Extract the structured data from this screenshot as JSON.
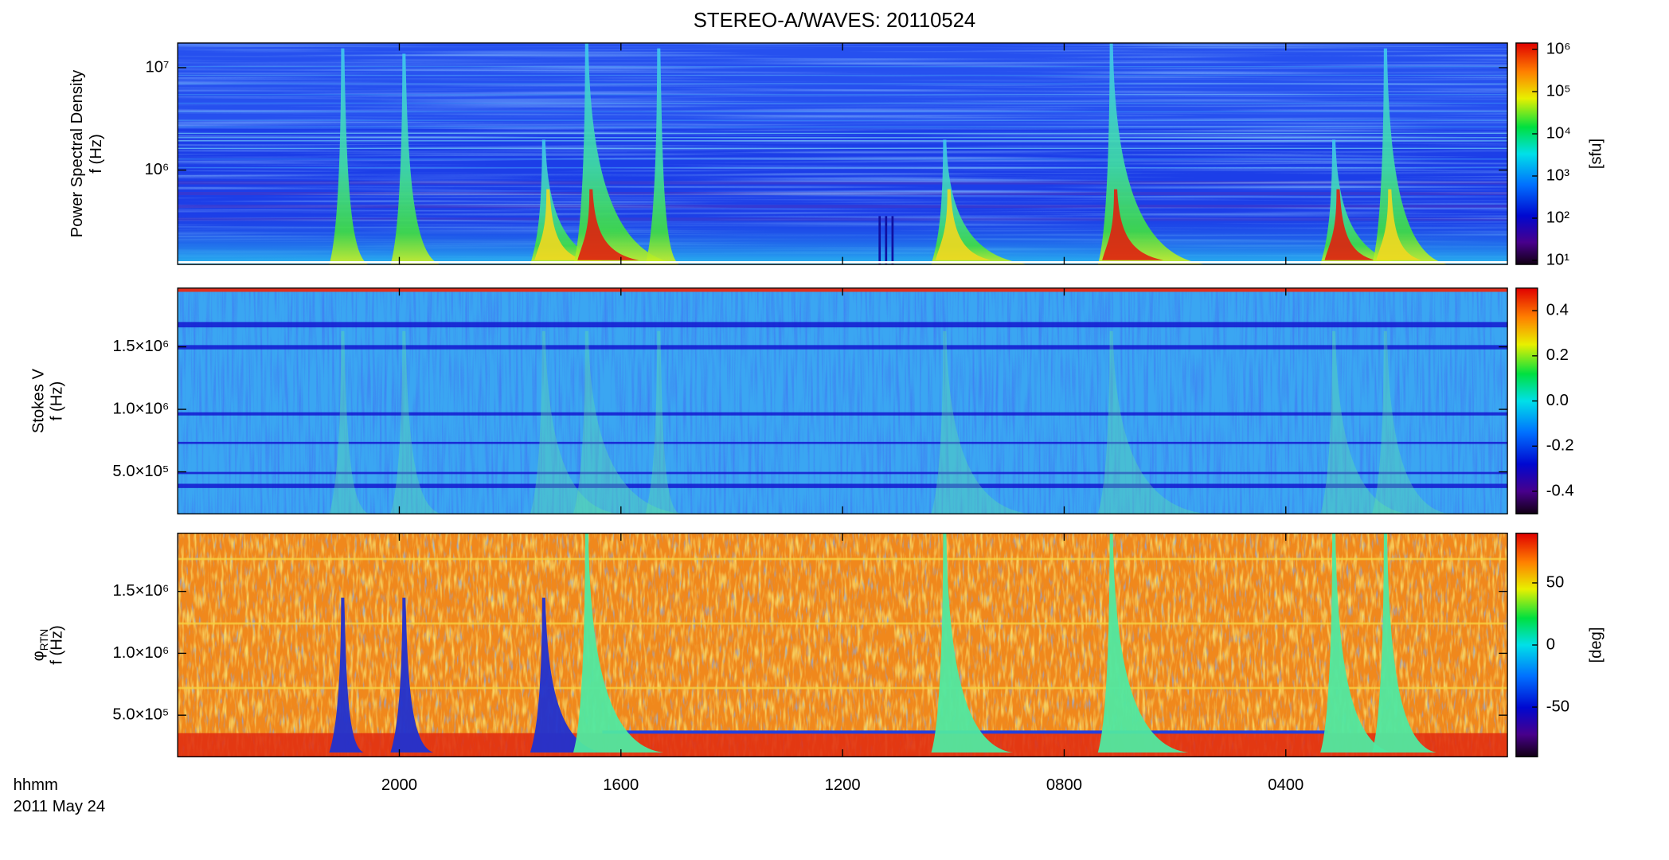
{
  "chart_data": [
    {
      "type": "heatmap",
      "title": "STEREO-A/WAVES: 20110524",
      "ylabel": "Power Spectral Density",
      "ylabel_unit": "f (Hz)",
      "ylog": true,
      "ylim": [
        120000,
        17400000
      ],
      "yticks": [
        {
          "value": 1000000,
          "label": "10⁶"
        },
        {
          "value": 10000000,
          "label": "10⁷"
        }
      ],
      "xlim": [
        0,
        24
      ],
      "colorbar": {
        "label": "[sfu]",
        "log": true,
        "lim": [
          8,
          1420000
        ],
        "ticks": [
          {
            "value": 10,
            "label": "10¹"
          },
          {
            "value": 100,
            "label": "10²"
          },
          {
            "value": 1000,
            "label": "10³"
          },
          {
            "value": 10000,
            "label": "10⁴"
          },
          {
            "value": 100000,
            "label": "10⁵"
          },
          {
            "value": 1000000,
            "label": "10⁶"
          }
        ]
      }
    },
    {
      "type": "heatmap",
      "ylabel": "Stokes V",
      "ylabel_unit": "f (Hz)",
      "ylim": [
        164000,
        1970000
      ],
      "yticks": [
        {
          "value": 500000,
          "label": "5.0×10⁵"
        },
        {
          "value": 1000000,
          "label": "1.0×10⁶"
        },
        {
          "value": 1500000,
          "label": "1.5×10⁶"
        }
      ],
      "xlim": [
        0,
        24
      ],
      "colorbar": {
        "lim": [
          -0.5,
          0.5
        ],
        "ticks": [
          -0.4,
          -0.2,
          {
            "value": 0,
            "label": "0.0"
          },
          0.2,
          0.4
        ]
      }
    },
    {
      "type": "heatmap",
      "ylabel": "φ",
      "ylabel_sub": "RTN",
      "ylabel_unit": "f (Hz)",
      "ylim": [
        164000,
        1970000
      ],
      "yticks": [
        {
          "value": 500000,
          "label": "5.0×10⁵"
        },
        {
          "value": 1000000,
          "label": "1.0×10⁶"
        },
        {
          "value": 1500000,
          "label": "1.5×10⁶"
        }
      ],
      "xlim": [
        0,
        24
      ],
      "xticks": [
        {
          "value": 4,
          "label": "0400"
        },
        {
          "value": 8,
          "label": "0800"
        },
        {
          "value": 12,
          "label": "1200"
        },
        {
          "value": 16,
          "label": "1600"
        },
        {
          "value": 20,
          "label": "2000"
        }
      ],
      "xlabel": "hhmm",
      "date": "2011 May 24",
      "colorbar": {
        "label": "[deg]",
        "lim": [
          -90,
          90
        ],
        "ticks": [
          -50,
          0,
          50
        ]
      }
    }
  ]
}
